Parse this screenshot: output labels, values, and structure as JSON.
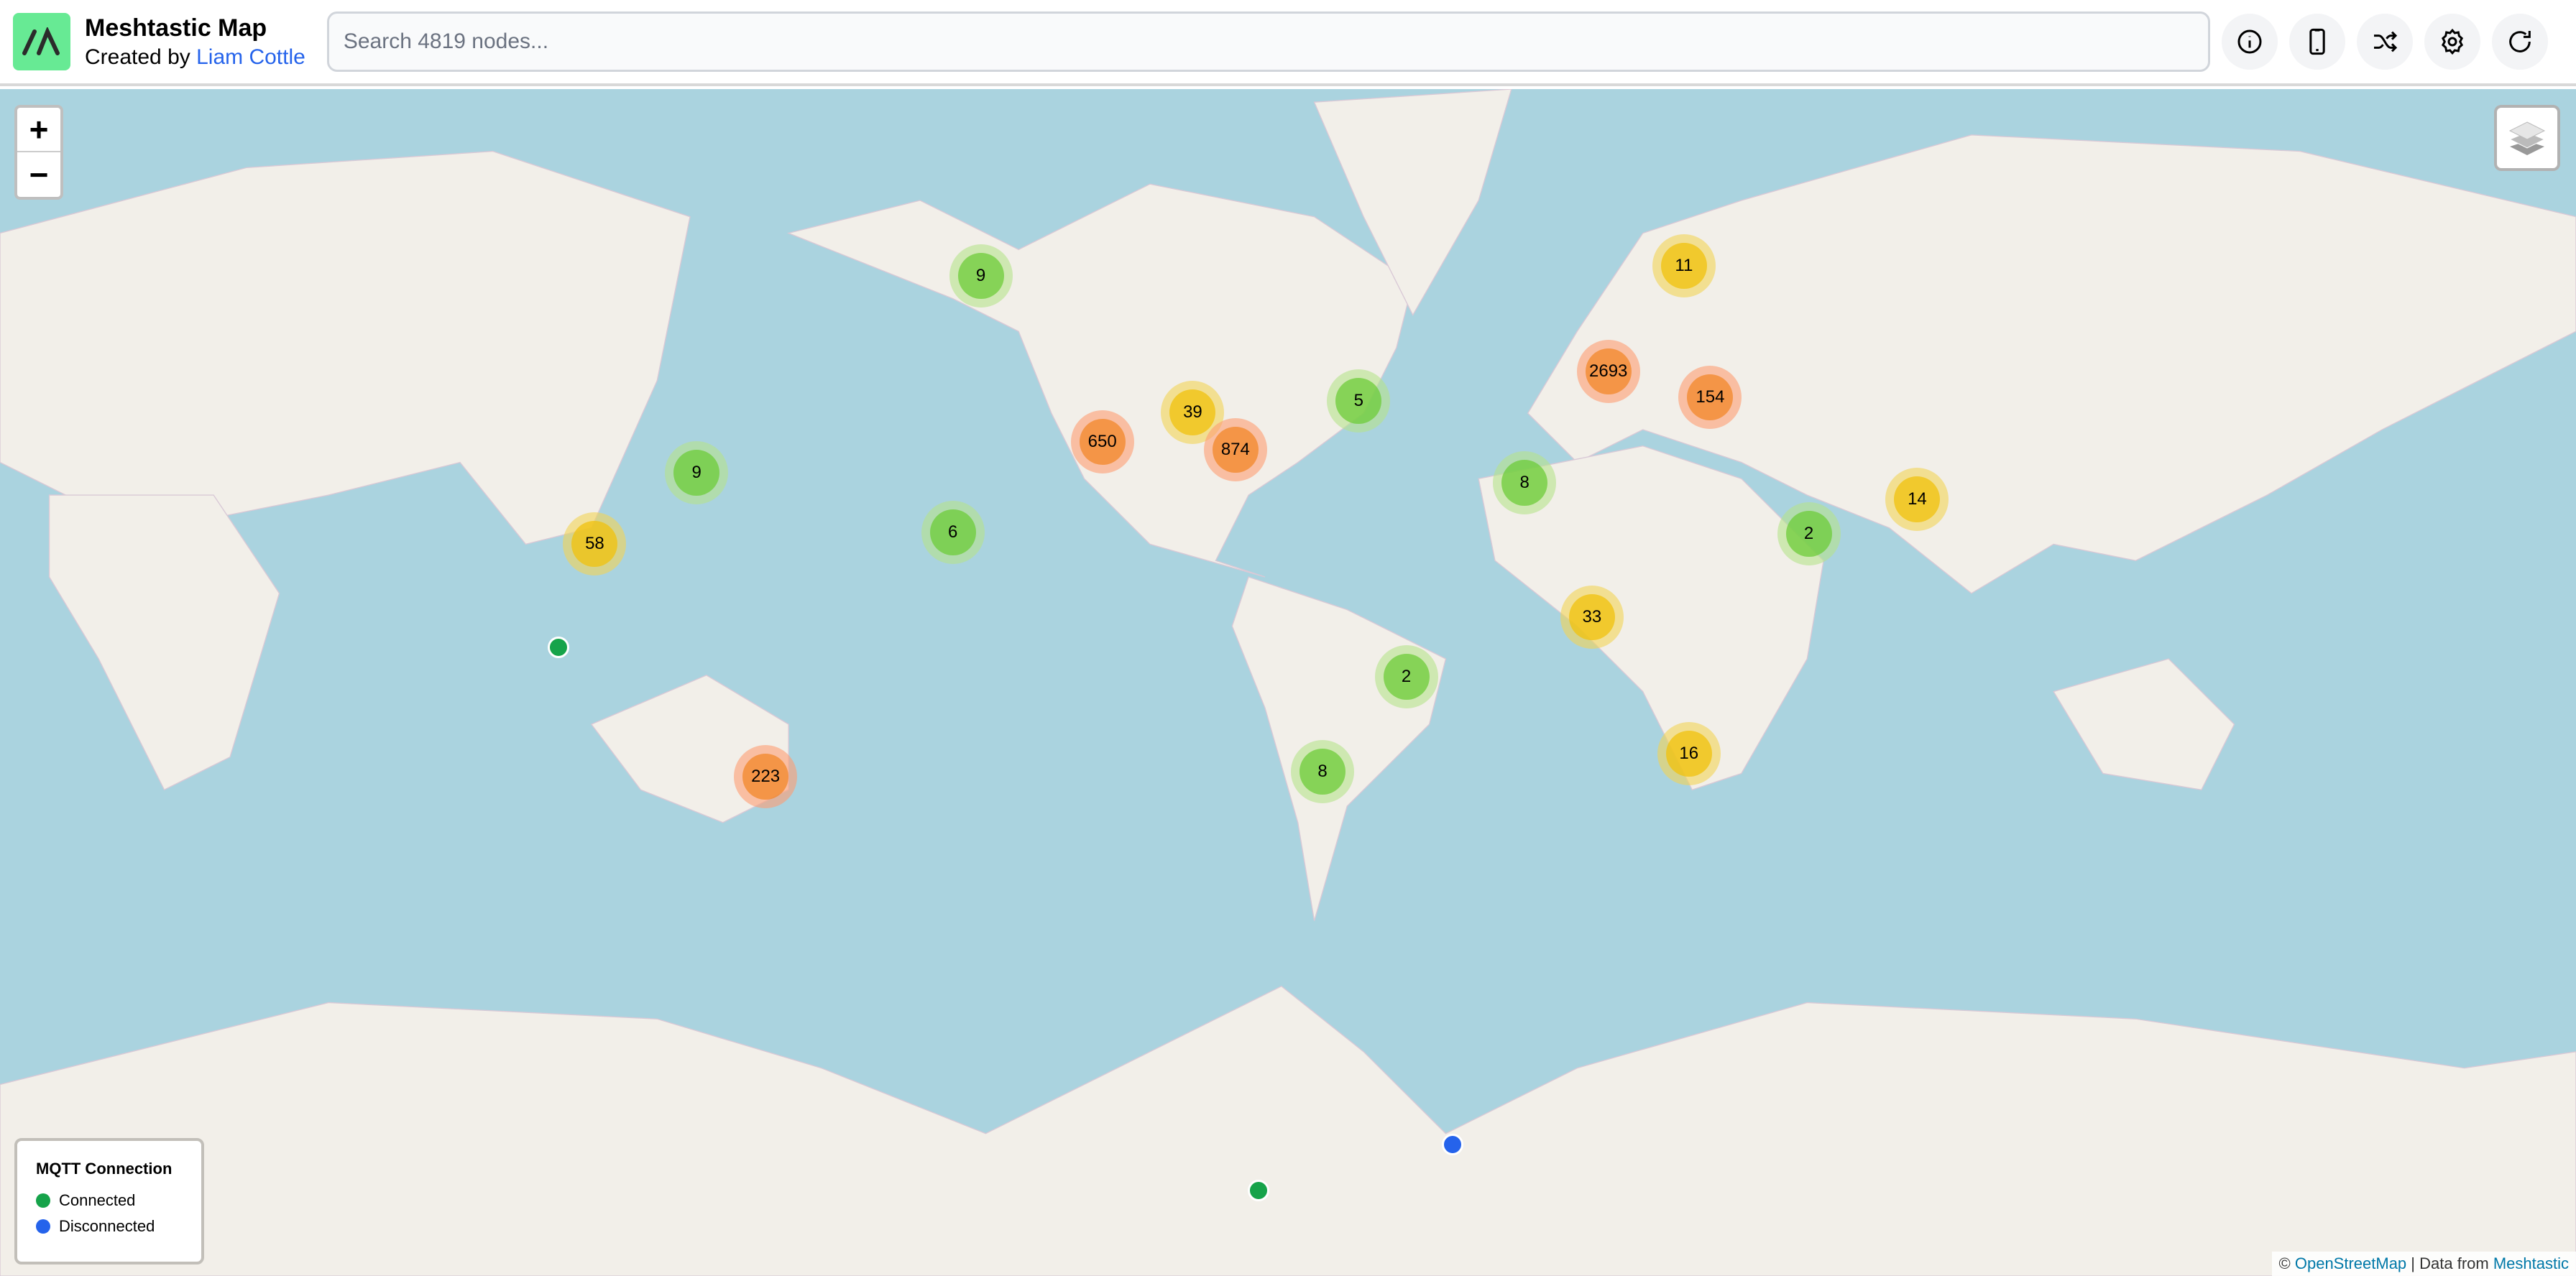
{
  "header": {
    "title": "Meshtastic Map",
    "subtitle_prefix": "Created by",
    "author": "Liam Cottle",
    "search_placeholder": "Search 4819 nodes...",
    "buttons": [
      {
        "icon": "info-icon"
      },
      {
        "icon": "phone-icon"
      },
      {
        "icon": "shuffle-icon"
      },
      {
        "icon": "gear-icon"
      },
      {
        "icon": "refresh-icon"
      }
    ]
  },
  "map": {
    "zoom_in": "+",
    "zoom_out": "−",
    "layers_icon": "layers-icon",
    "clusters": [
      {
        "count": "9",
        "level": "low"
      },
      {
        "count": "11",
        "level": "medium"
      },
      {
        "count": "2693",
        "level": "high"
      },
      {
        "count": "154",
        "level": "high"
      },
      {
        "count": "5",
        "level": "low"
      },
      {
        "count": "39",
        "level": "medium"
      },
      {
        "count": "650",
        "level": "high"
      },
      {
        "count": "874",
        "level": "high"
      },
      {
        "count": "9",
        "level": "low"
      },
      {
        "count": "8",
        "level": "low"
      },
      {
        "count": "58",
        "level": "medium"
      },
      {
        "count": "6",
        "level": "low"
      },
      {
        "count": "2",
        "level": "low"
      },
      {
        "count": "14",
        "level": "medium"
      },
      {
        "count": "33",
        "level": "medium"
      },
      {
        "count": "2",
        "level": "low"
      },
      {
        "count": "223",
        "level": "high"
      },
      {
        "count": "8",
        "level": "low"
      },
      {
        "count": "16",
        "level": "medium"
      }
    ],
    "nodes": [
      {
        "status": "connected"
      },
      {
        "status": "connected"
      },
      {
        "status": "disconnected"
      }
    ]
  },
  "legend": {
    "title": "MQTT Connection",
    "items": [
      {
        "label": "Connected",
        "color": "#16a34a"
      },
      {
        "label": "Disconnected",
        "color": "#2563eb"
      }
    ]
  },
  "attribution": {
    "prefix": "©",
    "osm": "OpenStreetMap",
    "separator": "| Data from",
    "meshtastic": "Meshtastic"
  },
  "colors": {
    "water": "#aad3df",
    "land": "#f2efe9",
    "logo": "#67ea94"
  }
}
